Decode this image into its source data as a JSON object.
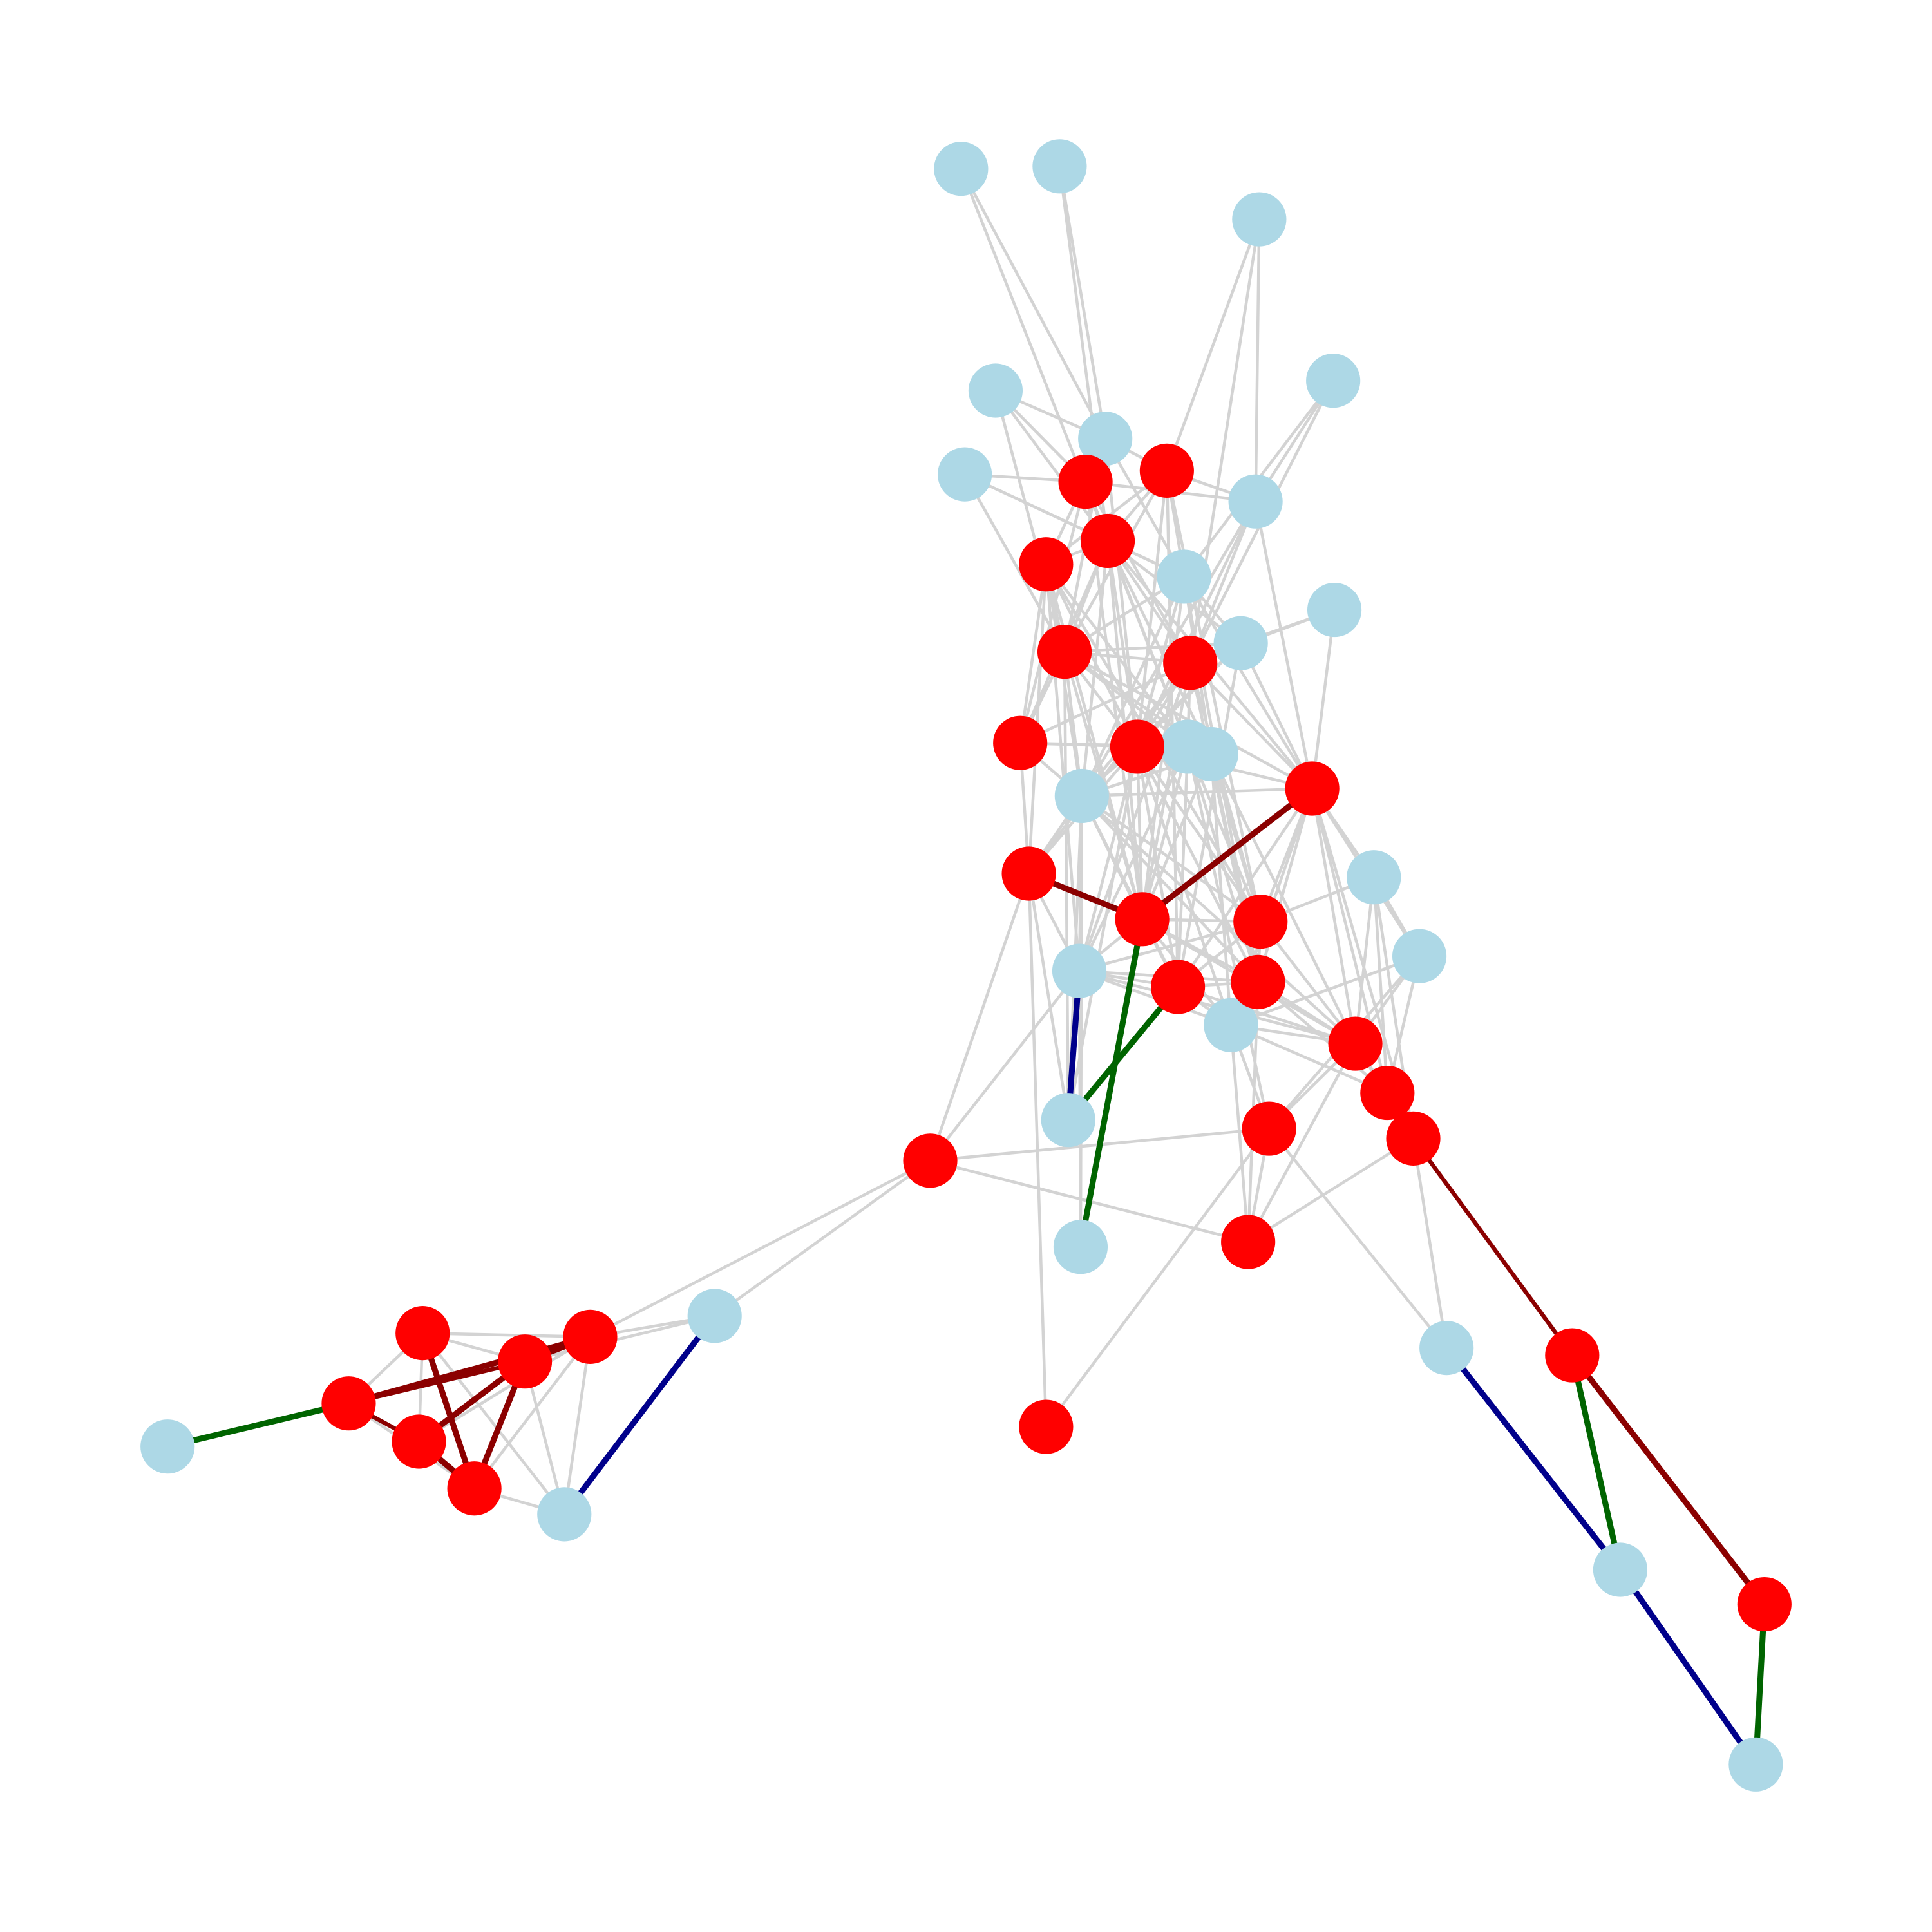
{
  "colors": {
    "background": "#ffffff",
    "node_red": "#ff0000",
    "node_blue": "#add8e6",
    "edge_default": "#d3d3d3",
    "edge_darkred": "#8b0000",
    "edge_green": "#006400",
    "edge_navy": "#00008b"
  },
  "legend": null
}
